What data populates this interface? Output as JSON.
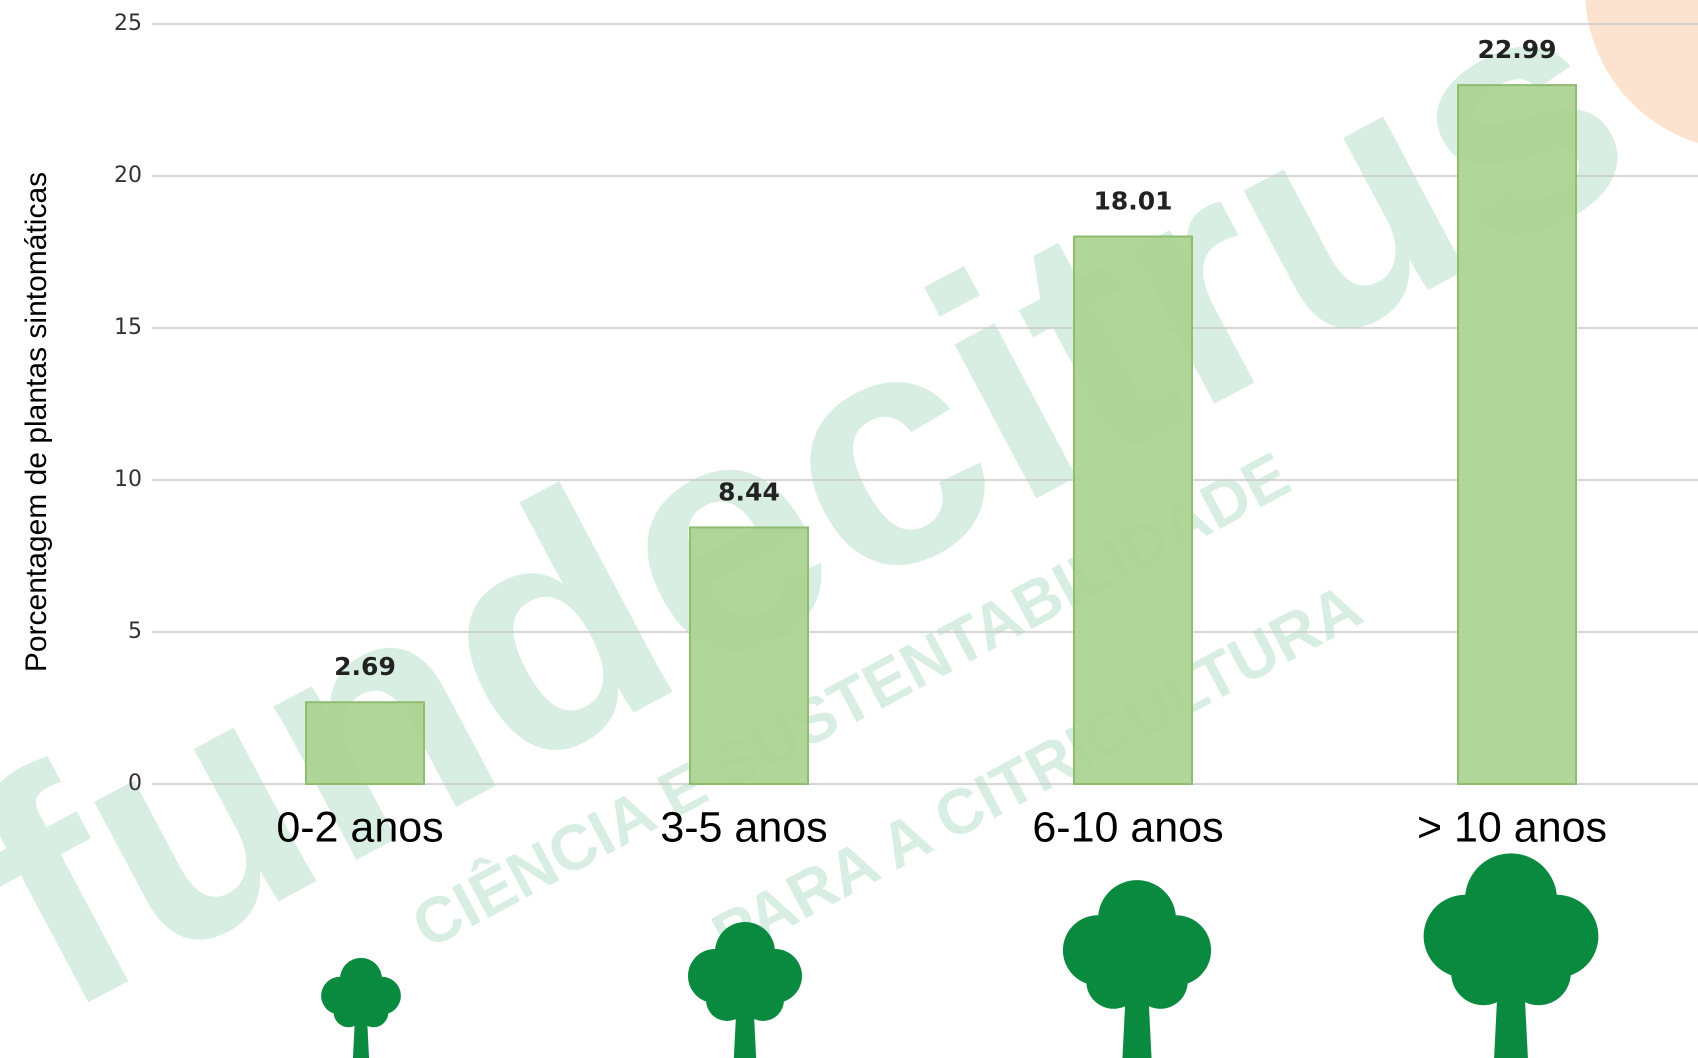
{
  "chart_data": {
    "type": "bar",
    "y_label": "Porcentagem de plantas sintomáticas",
    "categories": [
      "0-2 anos",
      "3-5 anos",
      "6-10 anos",
      "> 10 anos"
    ],
    "values": [
      2.69,
      8.44,
      18.01,
      22.99
    ],
    "color": "#a9d18e",
    "ylim": [
      0,
      25
    ],
    "yticks": [
      0,
      5,
      10,
      15,
      20,
      25
    ],
    "grid": true,
    "watermark": {
      "logo": "fundecitrus",
      "tagline": [
        "CIÊNCIA E SUSTENTABILIDADE",
        "PARA A CITRICULTURA"
      ]
    }
  }
}
